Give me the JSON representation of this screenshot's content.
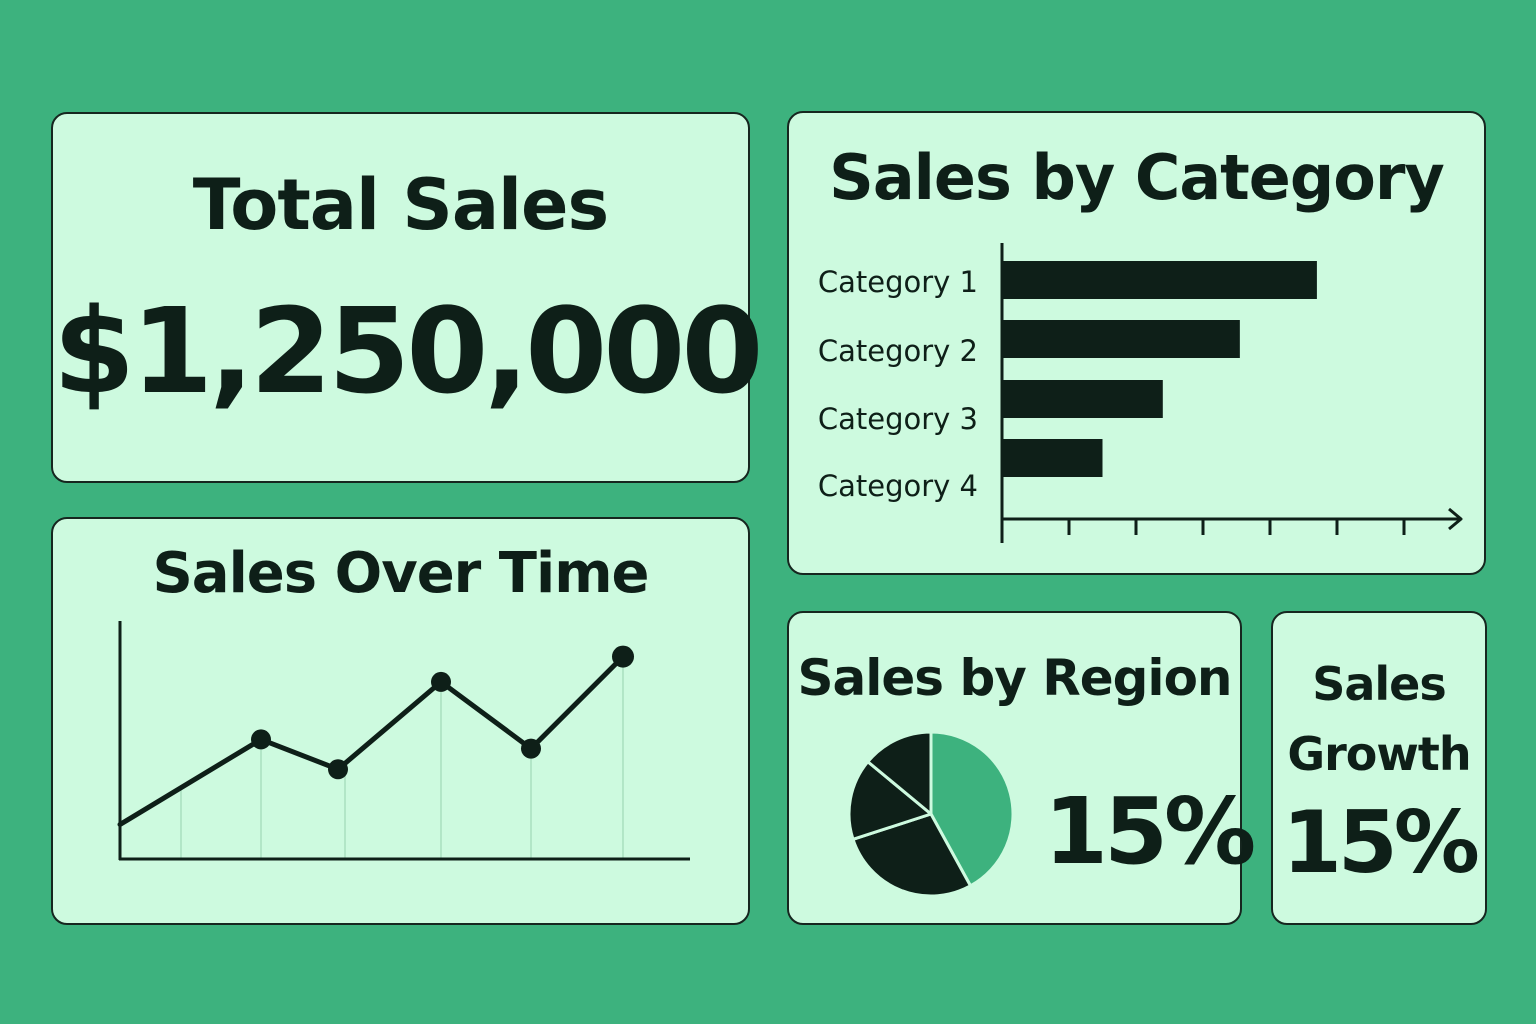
{
  "total_sales": {
    "title": "Total Sales",
    "value": "$1,250,000"
  },
  "sales_by_region": {
    "title": "Sales by Region",
    "value": "15%"
  },
  "sales_growth": {
    "title_line1": "Sales",
    "title_line2": "Growth",
    "value": "15%"
  },
  "colors": {
    "background": "#3db27e",
    "card": "#cdfadf",
    "ink": "#0e1f18",
    "accent": "#3db27e"
  },
  "chart_data": [
    {
      "type": "line",
      "title": "Sales Over Time",
      "xlabel": "",
      "ylabel": "",
      "x": [
        0,
        1,
        2,
        3,
        4,
        5
      ],
      "values": [
        15,
        52,
        39,
        77,
        48,
        88
      ],
      "markers": [
        false,
        true,
        true,
        true,
        true,
        true
      ],
      "ylim": [
        0,
        100
      ],
      "grid": "vertical"
    },
    {
      "type": "bar",
      "orientation": "horizontal",
      "title": "Sales by Category",
      "categories": [
        "Category 1",
        "Category 2",
        "Category 3",
        "Category 4"
      ],
      "values": [
        4.7,
        3.55,
        2.4,
        1.5
      ],
      "xlim": [
        0,
        7
      ],
      "grid": false
    },
    {
      "type": "pie",
      "title": "Sales by Region",
      "values": [
        42,
        28,
        16,
        14
      ],
      "colors": [
        "#3db27e",
        "#0e1f18",
        "#0e1f18",
        "#0e1f18"
      ]
    }
  ]
}
